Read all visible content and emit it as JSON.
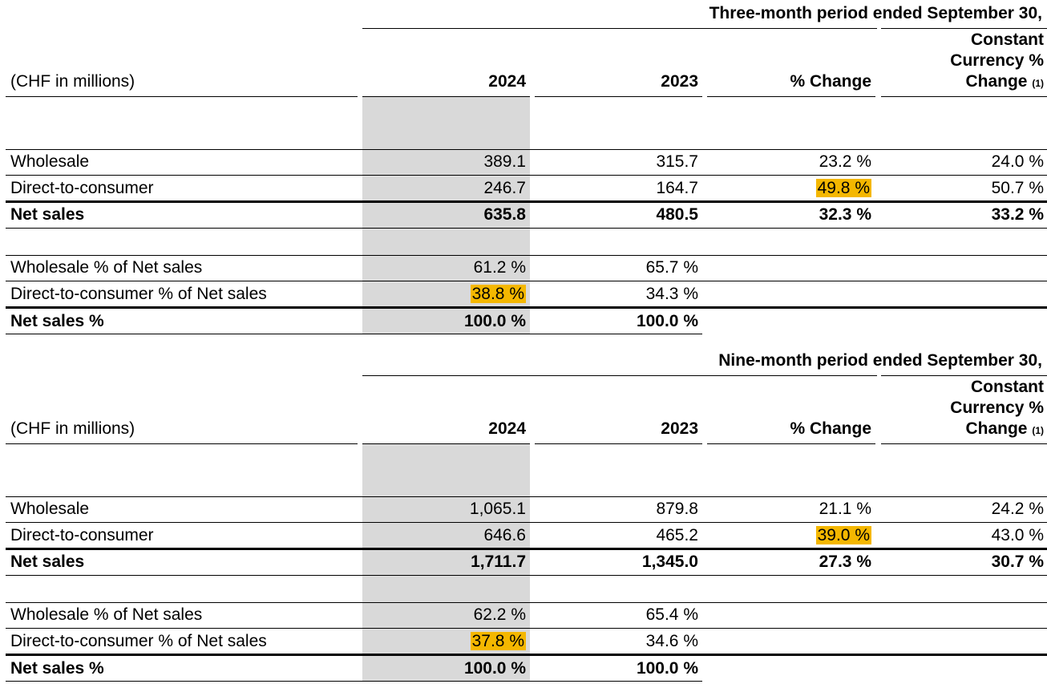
{
  "sections": [
    {
      "period_title": "Three-month period ended September 30,",
      "headers": {
        "label": "(CHF in millions)",
        "col_2024": "2024",
        "col_2023": "2023",
        "col_change": "% Change",
        "col_cc_line1": "Constant",
        "col_cc_line2": "Currency %",
        "col_cc_line3": "Change",
        "col_cc_note": "(1)"
      },
      "rows": [
        {
          "label": "Wholesale",
          "v2024": "389.1",
          "v2023": "315.7",
          "change": "23.2 %",
          "cc": "24.0 %"
        },
        {
          "label": "Direct-to-consumer",
          "v2024": "246.7",
          "v2023": "164.7",
          "change": "49.8 %",
          "cc": "50.7 %"
        },
        {
          "label": "Net sales",
          "v2024": "635.8",
          "v2023": "480.5",
          "change": "32.3 %",
          "cc": "33.2 %"
        },
        {
          "label": "Wholesale % of Net sales",
          "v2024": "61.2 %",
          "v2023": "65.7 %"
        },
        {
          "label": "Direct-to-consumer % of Net sales",
          "v2024": "38.8 %",
          "v2023": "34.3 %"
        },
        {
          "label": "Net sales %",
          "v2024": "100.0 %",
          "v2023": "100.0 %"
        }
      ]
    },
    {
      "period_title": "Nine-month period ended September 30,",
      "headers": {
        "label": "(CHF in millions)",
        "col_2024": "2024",
        "col_2023": "2023",
        "col_change": "% Change",
        "col_cc_line1": "Constant",
        "col_cc_line2": "Currency %",
        "col_cc_line3": "Change",
        "col_cc_note": "(1)"
      },
      "rows": [
        {
          "label": "Wholesale",
          "v2024": "1,065.1",
          "v2023": "879.8",
          "change": "21.1 %",
          "cc": "24.2 %"
        },
        {
          "label": "Direct-to-consumer",
          "v2024": "646.6",
          "v2023": "465.2",
          "change": "39.0 %",
          "cc": "43.0 %"
        },
        {
          "label": "Net sales",
          "v2024": "1,711.7",
          "v2023": "1,345.0",
          "change": "27.3 %",
          "cc": "30.7 %"
        },
        {
          "label": "Wholesale % of Net sales",
          "v2024": "62.2 %",
          "v2023": "65.4 %"
        },
        {
          "label": "Direct-to-consumer % of Net sales",
          "v2024": "37.8 %",
          "v2023": "34.6 %"
        },
        {
          "label": "Net sales %",
          "v2024": "100.0 %",
          "v2023": "100.0 %"
        }
      ]
    }
  ],
  "colors": {
    "highlight": "#f4b700",
    "shade": "#d9d9d9"
  }
}
